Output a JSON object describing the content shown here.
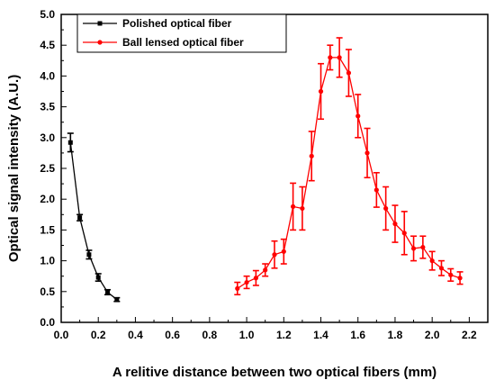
{
  "chart_data": {
    "type": "line",
    "title": "",
    "xlabel": "A relitive distance between two optical fibers (mm)",
    "ylabel": "Optical signal intensity (A.U.)",
    "xlim": [
      0.0,
      2.3
    ],
    "ylim": [
      0.0,
      5.0
    ],
    "x_ticks": [
      "0.0",
      "0.2",
      "0.4",
      "0.6",
      "0.8",
      "1.0",
      "1.2",
      "1.4",
      "1.6",
      "1.8",
      "2.0",
      "2.2"
    ],
    "y_ticks": [
      "0.0",
      "0.5",
      "1.0",
      "1.5",
      "2.0",
      "2.5",
      "3.0",
      "3.5",
      "4.0",
      "4.5",
      "5.0"
    ],
    "grid": false,
    "legend_position": "top-left",
    "series": [
      {
        "name": "Polished optical fiber",
        "color": "#000000",
        "marker": "square",
        "x": [
          0.05,
          0.1,
          0.15,
          0.2,
          0.25,
          0.3
        ],
        "y": [
          2.92,
          1.7,
          1.1,
          0.73,
          0.49,
          0.37
        ],
        "err": [
          0.15,
          0.05,
          0.07,
          0.06,
          0.04,
          0.03
        ]
      },
      {
        "name": "Ball lensed optical fiber",
        "color": "#ff0000",
        "marker": "circle",
        "x": [
          0.95,
          1.0,
          1.05,
          1.1,
          1.15,
          1.2,
          1.25,
          1.3,
          1.35,
          1.4,
          1.45,
          1.5,
          1.55,
          1.6,
          1.65,
          1.7,
          1.75,
          1.8,
          1.85,
          1.9,
          1.95,
          2.0,
          2.05,
          2.1,
          2.15
        ],
        "y": [
          0.55,
          0.65,
          0.72,
          0.85,
          1.1,
          1.15,
          1.88,
          1.85,
          2.7,
          3.75,
          4.3,
          4.3,
          4.05,
          3.35,
          2.75,
          2.15,
          1.85,
          1.6,
          1.45,
          1.2,
          1.22,
          1.0,
          0.88,
          0.77,
          0.72
        ],
        "err": [
          0.1,
          0.1,
          0.12,
          0.1,
          0.22,
          0.2,
          0.38,
          0.35,
          0.4,
          0.45,
          0.2,
          0.32,
          0.38,
          0.35,
          0.4,
          0.28,
          0.35,
          0.3,
          0.35,
          0.2,
          0.18,
          0.15,
          0.12,
          0.1,
          0.1
        ]
      }
    ]
  }
}
